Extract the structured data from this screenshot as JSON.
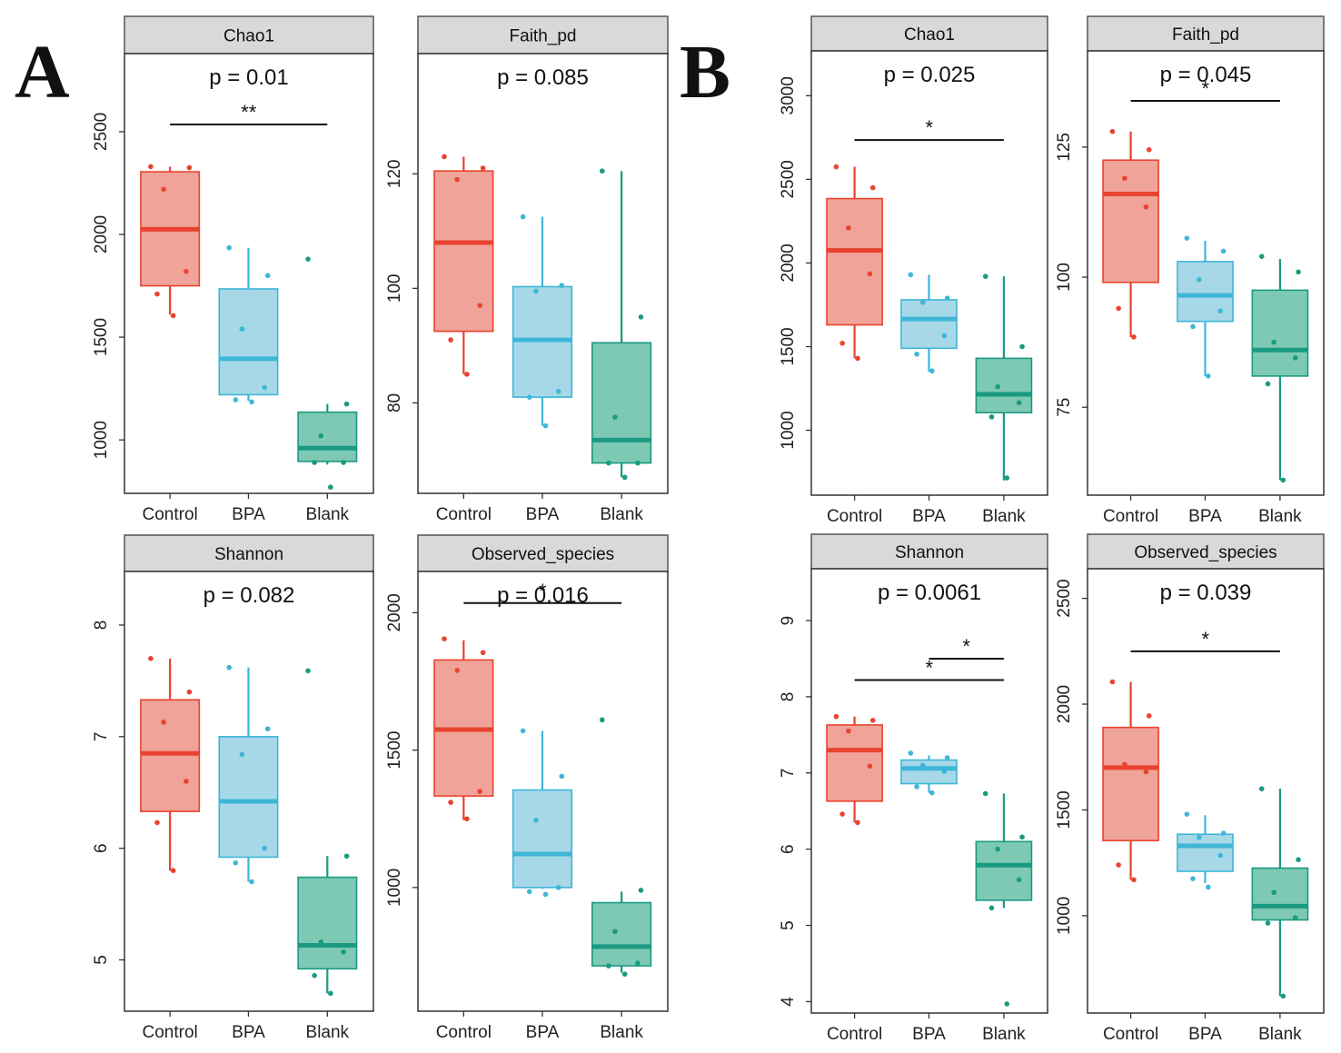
{
  "panel_labels": [
    "A",
    "B"
  ],
  "colors": {
    "Control": "#e8432f",
    "BPA": "#3fb6d8",
    "Blank": "#1a9a82",
    "Control_fill": "#f0a398",
    "BPA_fill": "#a6d8e8",
    "Blank_fill": "#7ec9b4",
    "strip": "#d9d9d9"
  },
  "chart_data": [
    {
      "type": "box",
      "panel": "A",
      "title": "Chao1",
      "pvalue_label": "p = 0.01",
      "categories": [
        "Control",
        "BPA",
        "Blank"
      ],
      "yticks": [
        1000,
        1500,
        2000,
        2500
      ],
      "ylim": [
        740,
        2880
      ],
      "boxes": [
        {
          "group": "Control",
          "min": 1610,
          "q1": 1750,
          "median": 2025,
          "q3": 2305,
          "max": 2330,
          "points": [
            2330,
            2325,
            2220,
            1820,
            1710,
            1605
          ]
        },
        {
          "group": "BPA",
          "min": 1190,
          "q1": 1220,
          "median": 1395,
          "q3": 1735,
          "max": 1935,
          "points": [
            1935,
            1800,
            1540,
            1255,
            1195,
            1185
          ]
        },
        {
          "group": "Blank",
          "min": 880,
          "q1": 895,
          "median": 960,
          "q3": 1135,
          "max": 1175,
          "points": [
            1880,
            1175,
            1020,
            890,
            890,
            770
          ]
        }
      ],
      "significance": [
        {
          "from": "Control",
          "to": "Blank",
          "y": 2535,
          "label": "**"
        }
      ]
    },
    {
      "type": "box",
      "panel": "A",
      "title": "Faith_pd",
      "pvalue_label": "p = 0.085",
      "categories": [
        "Control",
        "BPA",
        "Blank"
      ],
      "yticks": [
        80,
        100,
        120
      ],
      "ylim": [
        64.2,
        141
      ],
      "ytick_labels": [
        "80",
        "100",
        "120"
      ],
      "boxes": [
        {
          "group": "Control",
          "min": 85,
          "q1": 92.5,
          "median": 108,
          "q3": 120.5,
          "max": 123,
          "points": [
            123,
            121,
            119,
            97,
            91,
            85
          ]
        },
        {
          "group": "BPA",
          "min": 76,
          "q1": 81,
          "median": 91,
          "q3": 100.3,
          "max": 112.5,
          "points": [
            112.5,
            100.5,
            99.5,
            82,
            81,
            76
          ]
        },
        {
          "group": "Blank",
          "min": 67,
          "q1": 69.5,
          "median": 73.5,
          "q3": 90.5,
          "max": 120.5,
          "points": [
            120.5,
            95,
            77.5,
            69.5,
            69.5,
            67
          ]
        }
      ],
      "significance": []
    },
    {
      "type": "box",
      "panel": "A",
      "title": "Shannon",
      "pvalue_label": "p = 0.082",
      "categories": [
        "Control",
        "BPA",
        "Blank"
      ],
      "yticks": [
        5,
        6,
        7,
        8
      ],
      "ylim": [
        4.54,
        8.48
      ],
      "boxes": [
        {
          "group": "Control",
          "min": 5.8,
          "q1": 6.33,
          "median": 6.85,
          "q3": 7.33,
          "max": 7.7,
          "points": [
            7.7,
            7.4,
            7.13,
            6.6,
            6.23,
            5.8
          ]
        },
        {
          "group": "BPA",
          "min": 5.7,
          "q1": 5.92,
          "median": 6.42,
          "q3": 7.0,
          "max": 7.62,
          "points": [
            7.62,
            7.07,
            6.84,
            6.0,
            5.87,
            5.7
          ]
        },
        {
          "group": "Blank",
          "min": 4.7,
          "q1": 4.92,
          "median": 5.13,
          "q3": 5.74,
          "max": 5.93,
          "points": [
            7.59,
            5.93,
            5.16,
            5.07,
            4.86,
            4.7
          ]
        }
      ],
      "significance": []
    },
    {
      "type": "box",
      "panel": "A",
      "title": "Observed_species",
      "pvalue_label": "p = 0.016",
      "categories": [
        "Control",
        "BPA",
        "Blank"
      ],
      "yticks": [
        1000,
        1500,
        2000
      ],
      "ylim": [
        550,
        2150
      ],
      "boxes": [
        {
          "group": "Control",
          "min": 1245,
          "q1": 1333,
          "median": 1575,
          "q3": 1828,
          "max": 1900,
          "points": [
            1905,
            1855,
            1790,
            1350,
            1310,
            1250
          ]
        },
        {
          "group": "BPA",
          "min": 995,
          "q1": 1000,
          "median": 1122,
          "q3": 1355,
          "max": 1570,
          "points": [
            1570,
            1405,
            1245,
            1000,
            985,
            975
          ]
        },
        {
          "group": "Blank",
          "min": 690,
          "q1": 715,
          "median": 785,
          "q3": 945,
          "max": 985,
          "points": [
            1610,
            990,
            840,
            725,
            715,
            685
          ]
        }
      ],
      "significance": [
        {
          "from": "Control",
          "to": "Blank",
          "y": 2035,
          "label": "*"
        }
      ]
    },
    {
      "type": "box",
      "panel": "B",
      "title": "Chao1",
      "pvalue_label": "p = 0.025",
      "categories": [
        "Control",
        "BPA",
        "Blank"
      ],
      "yticks": [
        1000,
        1500,
        2000,
        2500,
        3000
      ],
      "ylim": [
        612,
        3268
      ],
      "boxes": [
        {
          "group": "Control",
          "min": 1430,
          "q1": 1630,
          "median": 2075,
          "q3": 2385,
          "max": 2575,
          "points": [
            2575,
            2450,
            2210,
            1935,
            1520,
            1430
          ]
        },
        {
          "group": "BPA",
          "min": 1350,
          "q1": 1490,
          "median": 1665,
          "q3": 1780,
          "max": 1930,
          "points": [
            1930,
            1790,
            1765,
            1565,
            1455,
            1355
          ]
        },
        {
          "group": "Blank",
          "min": 700,
          "q1": 1105,
          "median": 1215,
          "q3": 1430,
          "max": 1920,
          "points": [
            1920,
            1500,
            1260,
            1165,
            1080,
            715
          ]
        }
      ],
      "significance": [
        {
          "from": "Control",
          "to": "Blank",
          "y": 2735,
          "label": "*"
        }
      ]
    },
    {
      "type": "box",
      "panel": "B",
      "title": "Faith_pd",
      "pvalue_label": "p = 0.045",
      "categories": [
        "Control",
        "BPA",
        "Blank"
      ],
      "yticks": [
        75,
        100,
        125
      ],
      "ylim": [
        58.1,
        143.5
      ],
      "boxes": [
        {
          "group": "Control",
          "min": 88.5,
          "q1": 99,
          "median": 116,
          "q3": 122.5,
          "max": 128,
          "points": [
            128,
            124.5,
            119,
            113.5,
            94,
            88.5
          ]
        },
        {
          "group": "BPA",
          "min": 81,
          "q1": 91.5,
          "median": 96.5,
          "q3": 103,
          "max": 107,
          "points": [
            107.5,
            105,
            99.5,
            93.5,
            90.5,
            81
          ]
        },
        {
          "group": "Blank",
          "min": 61,
          "q1": 81,
          "median": 86,
          "q3": 97.5,
          "max": 103.5,
          "points": [
            104,
            101,
            87.5,
            84.5,
            79.5,
            61
          ]
        }
      ],
      "significance": [
        {
          "from": "Control",
          "to": "Blank",
          "y": 133.9,
          "label": "*"
        }
      ]
    },
    {
      "type": "box",
      "panel": "B",
      "title": "Shannon",
      "pvalue_label": "p = 0.0061",
      "categories": [
        "Control",
        "BPA",
        "Blank"
      ],
      "yticks": [
        4,
        5,
        6,
        7,
        8,
        9
      ],
      "ylim": [
        3.85,
        9.68
      ],
      "boxes": [
        {
          "group": "Control",
          "min": 6.35,
          "q1": 6.63,
          "median": 7.3,
          "q3": 7.63,
          "max": 7.74,
          "points": [
            7.74,
            7.69,
            7.55,
            7.09,
            6.46,
            6.35
          ]
        },
        {
          "group": "BPA",
          "min": 6.74,
          "q1": 6.86,
          "median": 7.06,
          "q3": 7.17,
          "max": 7.23,
          "points": [
            7.26,
            7.2,
            7.1,
            7.02,
            6.82,
            6.74
          ]
        },
        {
          "group": "Blank",
          "min": 5.23,
          "q1": 5.33,
          "median": 5.79,
          "q3": 6.1,
          "max": 6.73,
          "points": [
            6.73,
            6.16,
            6.0,
            5.6,
            5.23,
            3.97
          ]
        }
      ],
      "significance": [
        {
          "from": "Control",
          "to": "Blank",
          "y": 8.22,
          "label": "*"
        },
        {
          "from": "BPA",
          "to": "Blank",
          "y": 8.5,
          "label": "*"
        }
      ]
    },
    {
      "type": "box",
      "panel": "B",
      "title": "Observed_species",
      "pvalue_label": "p = 0.039",
      "categories": [
        "Control",
        "BPA",
        "Blank"
      ],
      "yticks": [
        1000,
        1500,
        2000,
        2500
      ],
      "ylim": [
        540,
        2640
      ],
      "boxes": [
        {
          "group": "Control",
          "min": 1170,
          "q1": 1355,
          "median": 1700,
          "q3": 1890,
          "max": 2105,
          "points": [
            2105,
            1945,
            1715,
            1680,
            1240,
            1170
          ]
        },
        {
          "group": "BPA",
          "min": 1155,
          "q1": 1210,
          "median": 1330,
          "q3": 1385,
          "max": 1475,
          "points": [
            1480,
            1390,
            1370,
            1285,
            1175,
            1135
          ]
        },
        {
          "group": "Blank",
          "min": 620,
          "q1": 980,
          "median": 1045,
          "q3": 1225,
          "max": 1600,
          "points": [
            1600,
            1265,
            1110,
            990,
            965,
            620
          ]
        }
      ],
      "significance": [
        {
          "from": "Control",
          "to": "Blank",
          "y": 2250,
          "label": "*"
        }
      ]
    }
  ]
}
